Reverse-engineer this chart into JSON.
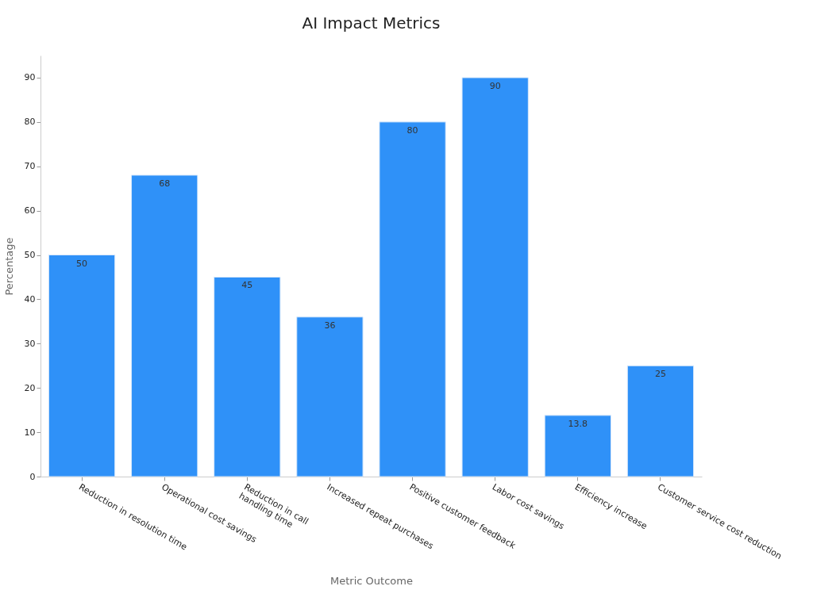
{
  "chart_data": {
    "type": "bar",
    "title": "AI Impact Metrics",
    "xlabel": "Metric Outcome",
    "ylabel": "Percentage",
    "categories": [
      "Reduction in resolution time",
      "Operational cost savings",
      "Reduction in call\nhandling time",
      "Increased repeat purchases",
      "Positive customer feedback",
      "Labor cost savings",
      "Efficiency increase",
      "Customer service cost reduction"
    ],
    "values": [
      50,
      68,
      45,
      36,
      80,
      90,
      13.8,
      25
    ],
    "color": "#2f91f8",
    "ylim": [
      0,
      95
    ],
    "yticks": [
      0,
      10,
      20,
      30,
      40,
      50,
      60,
      70,
      80,
      90
    ],
    "grid": false,
    "data_labels": true
  }
}
